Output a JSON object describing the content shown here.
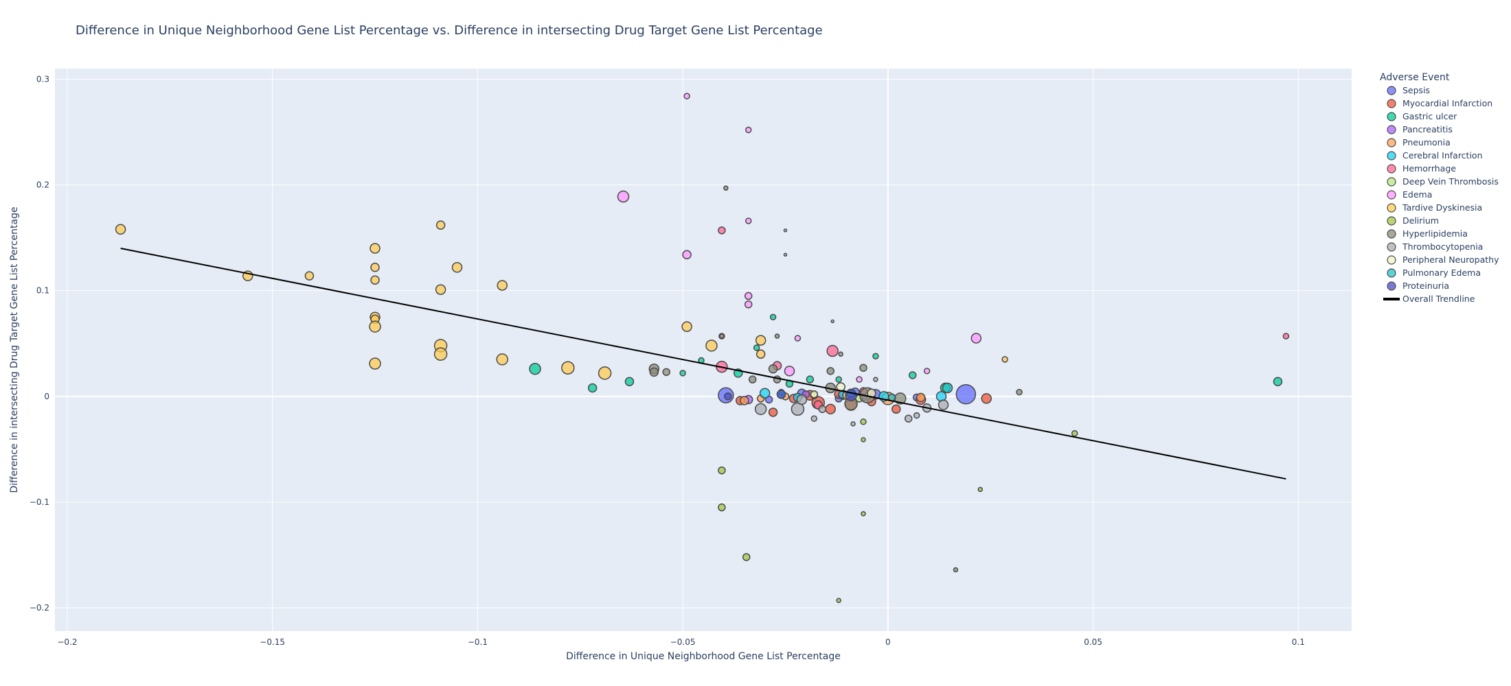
{
  "chart_data": {
    "type": "scatter",
    "title": "Difference in Unique Neighborhood Gene List Percentage vs. Difference in intersecting Drug Target Gene List Percentage",
    "xlabel": "Difference in Unique Neighborhood Gene List Percentage",
    "ylabel": "Difference in intersecting Drug Target Gene List Percentage",
    "xlim": [
      -0.203,
      0.113
    ],
    "ylim": [
      -0.222,
      0.31
    ],
    "x_ticks": [
      -0.2,
      -0.15,
      -0.1,
      -0.05,
      0,
      0.05,
      0.1
    ],
    "x_tick_labels": [
      "−0.2",
      "−0.15",
      "−0.1",
      "−0.05",
      "0",
      "0.05",
      "0.1"
    ],
    "y_ticks": [
      -0.2,
      -0.1,
      0,
      0.1,
      0.2,
      0.3
    ],
    "y_tick_labels": [
      "−0.2",
      "−0.1",
      "0",
      "0.1",
      "0.2",
      "0.3"
    ],
    "grid": true,
    "legend_title": "Adverse Event",
    "legend_position": "right",
    "background": "#e5ecf6",
    "series": [
      {
        "name": "Sepsis",
        "color": "#636efa",
        "points": [
          {
            "x": -0.0395,
            "y": 0.001,
            "s": 11
          },
          {
            "x": 0.019,
            "y": 0.002,
            "s": 14
          },
          {
            "x": -0.021,
            "y": 0.003,
            "s": 6
          },
          {
            "x": -0.012,
            "y": -0.002,
            "s": 5
          },
          {
            "x": -0.008,
            "y": 0.004,
            "s": 6
          },
          {
            "x": 0.007,
            "y": -0.001,
            "s": 5
          },
          {
            "x": -0.003,
            "y": 0.002,
            "s": 7
          },
          {
            "x": -0.029,
            "y": -0.003,
            "s": 5
          }
        ]
      },
      {
        "name": "Myocardial Infarction",
        "color": "#ef553b",
        "points": [
          {
            "x": 0.024,
            "y": -0.002,
            "s": 7
          },
          {
            "x": -0.017,
            "y": -0.006,
            "s": 9
          },
          {
            "x": -0.014,
            "y": -0.012,
            "s": 7
          },
          {
            "x": -0.028,
            "y": -0.015,
            "s": 6
          },
          {
            "x": -0.036,
            "y": -0.004,
            "s": 6
          },
          {
            "x": 0.002,
            "y": -0.012,
            "s": 6
          },
          {
            "x": 0.008,
            "y": -0.003,
            "s": 7
          },
          {
            "x": -0.009,
            "y": -0.008,
            "s": 8
          },
          {
            "x": -0.023,
            "y": -0.002,
            "s": 6
          },
          {
            "x": -0.004,
            "y": -0.005,
            "s": 6
          },
          {
            "x": -0.019,
            "y": 0.001,
            "s": 7
          },
          {
            "x": -0.012,
            "y": 0.002,
            "s": 6
          }
        ]
      },
      {
        "name": "Gastric ulcer",
        "color": "#00cc96",
        "points": [
          {
            "x": 0.095,
            "y": 0.014,
            "s": 6
          },
          {
            "x": 0.014,
            "y": 0.008,
            "s": 7
          },
          {
            "x": -0.086,
            "y": 0.026,
            "s": 8
          },
          {
            "x": -0.072,
            "y": 0.008,
            "s": 6
          },
          {
            "x": -0.063,
            "y": 0.014,
            "s": 6
          },
          {
            "x": -0.05,
            "y": 0.022,
            "s": 4
          },
          {
            "x": -0.028,
            "y": 0.075,
            "s": 4
          },
          {
            "x": -0.019,
            "y": 0.016,
            "s": 5
          },
          {
            "x": -0.0365,
            "y": 0.022,
            "s": 6
          },
          {
            "x": -0.032,
            "y": 0.046,
            "s": 4
          },
          {
            "x": 0.006,
            "y": 0.02,
            "s": 5
          },
          {
            "x": -0.0455,
            "y": 0.034,
            "s": 4
          },
          {
            "x": -0.003,
            "y": 0.038,
            "s": 4
          },
          {
            "x": -0.012,
            "y": 0.016,
            "s": 4
          },
          {
            "x": -0.024,
            "y": 0.012,
            "s": 5
          }
        ]
      },
      {
        "name": "Pancreatitis",
        "color": "#ab63fa",
        "points": [
          {
            "x": -0.034,
            "y": -0.003,
            "s": 6
          },
          {
            "x": -0.011,
            "y": 0.001,
            "s": 6
          },
          {
            "x": -0.02,
            "y": 0.002,
            "s": 5
          },
          {
            "x": -0.006,
            "y": -0.001,
            "s": 5
          }
        ]
      },
      {
        "name": "Pneumonia",
        "color": "#ffa15a",
        "points": [
          {
            "x": -0.035,
            "y": -0.004,
            "s": 6
          },
          {
            "x": 0.0,
            "y": -0.002,
            "s": 9
          },
          {
            "x": 0.008,
            "y": -0.001,
            "s": 6
          },
          {
            "x": -0.031,
            "y": -0.002,
            "s": 5
          },
          {
            "x": -0.025,
            "y": 0.0,
            "s": 5
          }
        ]
      },
      {
        "name": "Cerebral Infarction",
        "color": "#19d3f3",
        "points": [
          {
            "x": 0.013,
            "y": 0.0,
            "s": 7
          },
          {
            "x": -0.03,
            "y": 0.003,
            "s": 7
          },
          {
            "x": -0.022,
            "y": -0.001,
            "s": 6
          },
          {
            "x": -0.001,
            "y": 0.0,
            "s": 7
          },
          {
            "x": -0.011,
            "y": 0.002,
            "s": 6
          }
        ]
      },
      {
        "name": "Hemorrhage",
        "color": "#ff6692",
        "points": [
          {
            "x": 0.097,
            "y": 0.057,
            "s": 4
          },
          {
            "x": -0.0405,
            "y": 0.028,
            "s": 8
          },
          {
            "x": -0.0135,
            "y": 0.043,
            "s": 8
          },
          {
            "x": -0.0405,
            "y": 0.157,
            "s": 5
          },
          {
            "x": -0.027,
            "y": 0.029,
            "s": 6
          },
          {
            "x": -0.017,
            "y": -0.008,
            "s": 6
          },
          {
            "x": -0.006,
            "y": 0.005,
            "s": 5
          }
        ]
      },
      {
        "name": "Deep Vein Thrombosis",
        "color": "#b6e880",
        "points": [
          {
            "x": -0.018,
            "y": 0.001,
            "s": 5
          },
          {
            "x": -0.007,
            "y": -0.002,
            "s": 5
          },
          {
            "x": -0.026,
            "y": 0.004,
            "s": 4
          }
        ]
      },
      {
        "name": "Edema",
        "color": "#ff97ff",
        "points": [
          {
            "x": -0.0645,
            "y": 0.189,
            "s": 8
          },
          {
            "x": -0.049,
            "y": 0.284,
            "s": 4
          },
          {
            "x": -0.034,
            "y": 0.252,
            "s": 4
          },
          {
            "x": -0.034,
            "y": 0.166,
            "s": 4
          },
          {
            "x": -0.049,
            "y": 0.134,
            "s": 6
          },
          {
            "x": -0.034,
            "y": 0.095,
            "s": 5
          },
          {
            "x": -0.034,
            "y": 0.087,
            "s": 5
          },
          {
            "x": 0.0215,
            "y": 0.055,
            "s": 7
          },
          {
            "x": -0.022,
            "y": 0.055,
            "s": 4
          },
          {
            "x": -0.024,
            "y": 0.024,
            "s": 7
          },
          {
            "x": 0.0095,
            "y": 0.024,
            "s": 4
          },
          {
            "x": -0.007,
            "y": 0.016,
            "s": 4
          },
          {
            "x": -0.0405,
            "y": 0.057,
            "s": 4
          }
        ]
      },
      {
        "name": "Tardive Dyskinesia",
        "color": "#fecb52",
        "points": [
          {
            "x": -0.187,
            "y": 0.158,
            "s": 7
          },
          {
            "x": -0.156,
            "y": 0.114,
            "s": 7
          },
          {
            "x": -0.141,
            "y": 0.114,
            "s": 6
          },
          {
            "x": -0.125,
            "y": 0.14,
            "s": 7
          },
          {
            "x": -0.125,
            "y": 0.122,
            "s": 6
          },
          {
            "x": -0.125,
            "y": 0.11,
            "s": 6
          },
          {
            "x": -0.125,
            "y": 0.075,
            "s": 7
          },
          {
            "x": -0.125,
            "y": 0.073,
            "s": 6
          },
          {
            "x": -0.125,
            "y": 0.066,
            "s": 8
          },
          {
            "x": -0.125,
            "y": 0.031,
            "s": 8
          },
          {
            "x": -0.109,
            "y": 0.162,
            "s": 6
          },
          {
            "x": -0.109,
            "y": 0.101,
            "s": 7
          },
          {
            "x": -0.109,
            "y": 0.048,
            "s": 9
          },
          {
            "x": -0.109,
            "y": 0.04,
            "s": 9
          },
          {
            "x": -0.105,
            "y": 0.122,
            "s": 7
          },
          {
            "x": -0.094,
            "y": 0.105,
            "s": 7
          },
          {
            "x": -0.094,
            "y": 0.035,
            "s": 8
          },
          {
            "x": -0.078,
            "y": 0.027,
            "s": 9
          },
          {
            "x": -0.069,
            "y": 0.022,
            "s": 9
          },
          {
            "x": -0.049,
            "y": 0.066,
            "s": 7
          },
          {
            "x": -0.043,
            "y": 0.048,
            "s": 8
          },
          {
            "x": -0.031,
            "y": 0.053,
            "s": 7
          },
          {
            "x": -0.031,
            "y": 0.04,
            "s": 6
          },
          {
            "x": 0.0285,
            "y": 0.035,
            "s": 4
          },
          {
            "x": -0.01,
            "y": 0.001,
            "s": 6
          }
        ]
      },
      {
        "name": "Delirium",
        "color": "#a3c542",
        "points": [
          {
            "x": -0.0405,
            "y": -0.07,
            "s": 5
          },
          {
            "x": -0.0405,
            "y": -0.105,
            "s": 5
          },
          {
            "x": -0.0345,
            "y": -0.152,
            "s": 5
          },
          {
            "x": 0.0455,
            "y": -0.035,
            "s": 4
          },
          {
            "x": 0.0225,
            "y": -0.088,
            "s": 3
          },
          {
            "x": -0.006,
            "y": -0.041,
            "s": 3
          },
          {
            "x": -0.006,
            "y": -0.111,
            "s": 3
          },
          {
            "x": -0.012,
            "y": -0.193,
            "s": 3
          },
          {
            "x": -0.006,
            "y": -0.024,
            "s": 4
          }
        ]
      },
      {
        "name": "Hyperlipidemia",
        "color": "#8c8c7a",
        "points": [
          {
            "x": -0.057,
            "y": 0.026,
            "s": 7
          },
          {
            "x": -0.057,
            "y": 0.023,
            "s": 6
          },
          {
            "x": -0.054,
            "y": 0.023,
            "s": 5
          },
          {
            "x": -0.0395,
            "y": 0.197,
            "s": 3
          },
          {
            "x": -0.0405,
            "y": 0.057,
            "s": 3
          },
          {
            "x": -0.028,
            "y": 0.026,
            "s": 6
          },
          {
            "x": -0.033,
            "y": 0.016,
            "s": 5
          },
          {
            "x": -0.027,
            "y": 0.016,
            "s": 5
          },
          {
            "x": -0.014,
            "y": 0.024,
            "s": 5
          },
          {
            "x": -0.006,
            "y": 0.027,
            "s": 5
          },
          {
            "x": 0.032,
            "y": 0.004,
            "s": 4
          },
          {
            "x": -0.014,
            "y": 0.008,
            "s": 7
          },
          {
            "x": -0.009,
            "y": -0.007,
            "s": 9
          },
          {
            "x": -0.005,
            "y": 0.001,
            "s": 11
          },
          {
            "x": 0.003,
            "y": -0.002,
            "s": 8
          },
          {
            "x": 0.0165,
            "y": -0.164,
            "s": 3
          },
          {
            "x": -0.0115,
            "y": 0.04,
            "s": 3
          },
          {
            "x": -0.027,
            "y": 0.057,
            "s": 3
          }
        ]
      },
      {
        "name": "Thrombocytopenia",
        "color": "#a9aeb1",
        "points": [
          {
            "x": -0.031,
            "y": -0.012,
            "s": 8
          },
          {
            "x": -0.022,
            "y": -0.012,
            "s": 9
          },
          {
            "x": -0.021,
            "y": -0.003,
            "s": 7
          },
          {
            "x": 0.005,
            "y": -0.021,
            "s": 5
          },
          {
            "x": 0.007,
            "y": -0.018,
            "s": 4
          },
          {
            "x": 0.0095,
            "y": -0.011,
            "s": 6
          },
          {
            "x": 0.0135,
            "y": -0.008,
            "s": 7
          },
          {
            "x": -0.018,
            "y": -0.021,
            "s": 4
          },
          {
            "x": -0.0085,
            "y": -0.026,
            "s": 3
          },
          {
            "x": -0.025,
            "y": 0.157,
            "s": 2
          },
          {
            "x": -0.025,
            "y": 0.134,
            "s": 2
          },
          {
            "x": -0.0135,
            "y": 0.071,
            "s": 2
          },
          {
            "x": -0.003,
            "y": 0.016,
            "s": 3
          },
          {
            "x": -0.016,
            "y": -0.012,
            "s": 5
          }
        ]
      },
      {
        "name": "Peripheral Neuropathy",
        "color": "#f2f1c7",
        "points": [
          {
            "x": -0.0115,
            "y": 0.009,
            "s": 6
          },
          {
            "x": -0.004,
            "y": 0.003,
            "s": 6
          },
          {
            "x": -0.018,
            "y": 0.002,
            "s": 5
          }
        ]
      },
      {
        "name": "Pulmonary Edema",
        "color": "#26c2c8",
        "points": [
          {
            "x": 0.0145,
            "y": 0.008,
            "s": 7
          },
          {
            "x": -0.009,
            "y": 0.003,
            "s": 6
          },
          {
            "x": -0.026,
            "y": 0.002,
            "s": 6
          },
          {
            "x": 0.001,
            "y": -0.001,
            "s": 5
          }
        ]
      },
      {
        "name": "Proteinuria",
        "color": "#4a4ec6",
        "points": [
          {
            "x": -0.026,
            "y": 0.002,
            "s": 6
          },
          {
            "x": -0.009,
            "y": 0.001,
            "s": 8
          },
          {
            "x": -0.039,
            "y": 0.0,
            "s": 5
          }
        ]
      }
    ],
    "trendline": {
      "name": "Overall Trendline",
      "color": "#000000",
      "x": [
        -0.187,
        0.097
      ],
      "y": [
        0.14,
        -0.078
      ]
    }
  }
}
